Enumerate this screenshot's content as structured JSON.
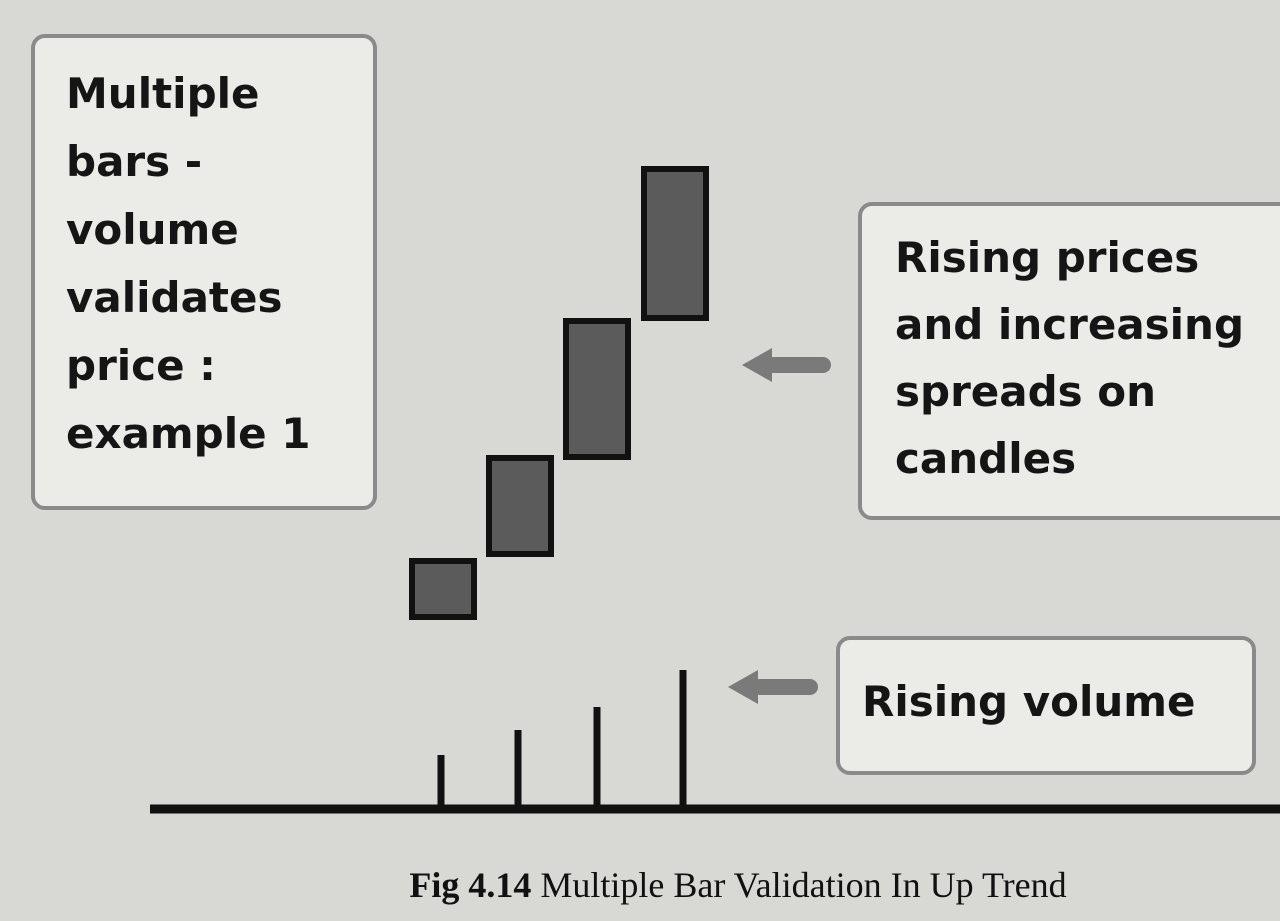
{
  "left_box": {
    "lines": [
      "Multiple",
      "bars -",
      "volume",
      "validates",
      "price :",
      "example 1"
    ]
  },
  "price_callout": {
    "lines": [
      "Rising prices",
      "and increasing",
      "spreads on",
      "candles"
    ]
  },
  "volume_callout": {
    "text": "Rising volume"
  },
  "caption": {
    "label": "Fig 4.14",
    "text": "Multiple Bar Validation In Up Trend"
  }
}
